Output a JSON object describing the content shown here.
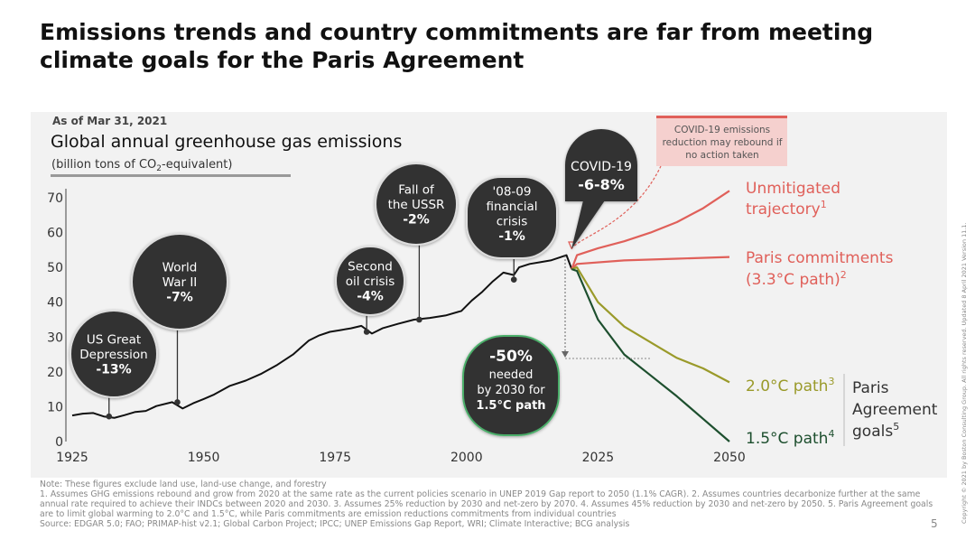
{
  "title": "Emissions trends and country commitments are far from meeting climate goals for the Paris Agreement",
  "chart_data": {
    "type": "line",
    "as_of": "As of Mar 31, 2021",
    "title": "Global annual greenhouse gas emissions",
    "subtitle_pre": "(billion tons of CO",
    "subtitle_sub": "2",
    "subtitle_post": "-equivalent)",
    "xlim": [
      1925,
      2050
    ],
    "ylim": [
      0,
      70
    ],
    "x_ticks": [
      "1925",
      "1950",
      "1975",
      "2000",
      "2025",
      "2050"
    ],
    "y_ticks": [
      "0",
      "10",
      "20",
      "30",
      "40",
      "50",
      "60",
      "70"
    ],
    "historical": {
      "x": [
        1925,
        1927,
        1929,
        1931,
        1933,
        1935,
        1937,
        1939,
        1941,
        1944,
        1946,
        1948,
        1950,
        1952,
        1955,
        1958,
        1961,
        1964,
        1967,
        1970,
        1972,
        1974,
        1976,
        1978,
        1980,
        1982,
        1984,
        1987,
        1990,
        1993,
        1996,
        1999,
        2001,
        2003,
        2005,
        2007,
        2009,
        2010,
        2012,
        2014,
        2016,
        2018,
        2019,
        2020
      ],
      "values": [
        7.5,
        8,
        8.2,
        7.2,
        6.8,
        7.6,
        8.5,
        8.8,
        10.2,
        11.3,
        9.5,
        11,
        12.2,
        13.5,
        16,
        17.5,
        19.5,
        22,
        25,
        29,
        30.5,
        31.5,
        32,
        32.5,
        33.2,
        31,
        32.5,
        33.8,
        35,
        35.5,
        36.2,
        37.5,
        40.5,
        43,
        46,
        48.5,
        47.8,
        50,
        51,
        51.5,
        52,
        53,
        53.5,
        49.5
      ]
    },
    "projections": [
      {
        "name": "Unmitigated trajectory",
        "color": "#e0605a",
        "x": [
          2020,
          2021,
          2025,
          2030,
          2035,
          2040,
          2045,
          2050
        ],
        "values": [
          49.5,
          53.5,
          55.5,
          57.5,
          60,
          63,
          67,
          72
        ]
      },
      {
        "name": "Paris commitments (3.3°C path)",
        "color": "#e0605a",
        "x": [
          2020,
          2021,
          2030,
          2040,
          2050
        ],
        "values": [
          49.5,
          51,
          52,
          52.5,
          53
        ]
      },
      {
        "name": "2.0°C path",
        "color": "#9a9a2a",
        "x": [
          2020,
          2021,
          2025,
          2030,
          2035,
          2040,
          2045,
          2050
        ],
        "values": [
          49.5,
          50,
          40,
          33,
          28.5,
          24,
          21,
          17
        ]
      },
      {
        "name": "1.5°C path",
        "color": "#1d4f2e",
        "x": [
          2020,
          2021,
          2025,
          2030,
          2035,
          2040,
          2045,
          2050
        ],
        "values": [
          49.5,
          49,
          35,
          25,
          19,
          13,
          6.5,
          0
        ]
      }
    ],
    "line_labels": {
      "unmitigated_line1": "Unmitigated",
      "unmitigated_line2": "trajectory",
      "unmitigated_sup": "1",
      "paris_line1": "Paris commitments",
      "paris_line2": "(3.3°C path)",
      "paris_sup": "2",
      "path20": "2.0°C path",
      "path20_sup": "3",
      "path15": "1.5°C path",
      "path15_sup": "4",
      "goals_line1": "Paris",
      "goals_line2": "Agreement",
      "goals_line3": "goals",
      "goals_sup": "5"
    },
    "events": [
      {
        "name": "us-depression",
        "line1": "US Great",
        "line2": "Depression",
        "value_label": "-13%",
        "year": 1932,
        "y": 7.2
      },
      {
        "name": "wwii",
        "line1": "World",
        "line2": "War II",
        "value_label": "-7%",
        "year": 1945,
        "y": 11.3
      },
      {
        "name": "oil-crisis",
        "line1": "Second",
        "line2": "oil crisis",
        "value_label": "-4%",
        "year": 1981,
        "y": 31.5
      },
      {
        "name": "ussr",
        "line1": "Fall of",
        "line2": "the USSR",
        "value_label": "-2%",
        "year": 1991,
        "y": 35
      },
      {
        "name": "financial-crisis",
        "line1": "'08-09",
        "line2": "financial",
        "line3": "crisis",
        "value_label": "-1%",
        "year": 2009,
        "y": 46.5
      }
    ],
    "covid": {
      "line1": "COVID-19",
      "value_label": "-6-8%"
    },
    "rebound_note": [
      "COVID-19 emissions",
      "reduction may rebound if",
      "no action taken"
    ],
    "needed": {
      "value": "-50%",
      "line1": "needed",
      "line2": "by 2030 for",
      "line3": "1.5°C path"
    }
  },
  "footnotes": {
    "note": "Note: These figures exclude land use, land-use change, and forestry",
    "detail": "1. Assumes GHG emissions rebound and grow from 2020 at the same rate as the current policies scenario in UNEP 2019 Gap report to 2050 (1.1% CAGR). 2. Assumes countries decarbonize further at the same annual rate required to achieve their INDCs between 2020 and 2030. 3. Assumes 25% reduction by 2030 and net-zero by 2070. 4. Assumes 45% reduction by 2030 and net-zero by 2050. 5. Paris Agreement goals are to limit global warming to 2.0°C and 1.5°C, while Paris commitments are emission reductions commitments from individual countries",
    "source": "Source: EDGAR 5.0; FAO; PRIMAP-hist v2.1; Global Carbon Project; IPCC; UNEP Emissions Gap Report, WRI; Climate Interactive; BCG analysis"
  },
  "page_number": "5",
  "copyright": "Copyright © 2021 by Boston Consulting Group. All rights reserved. Updated 8 April 2021 Version 11.1."
}
